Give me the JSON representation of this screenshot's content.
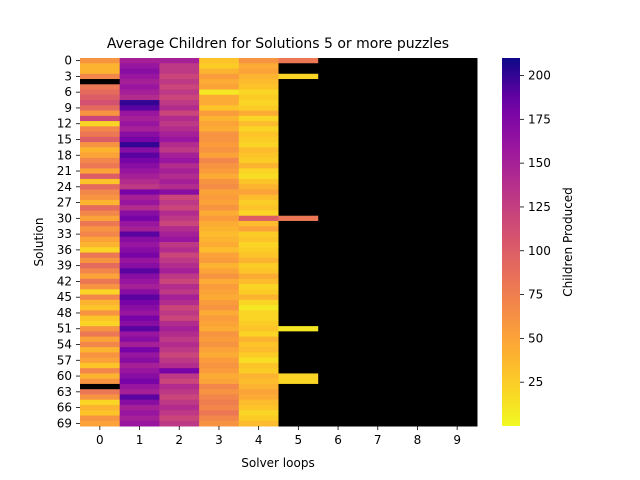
{
  "chart_data": {
    "type": "heatmap",
    "title": "Average Children  for Solutions 5 or more puzzles",
    "xlabel": "Solver loops",
    "ylabel": "Solution",
    "colorbar_label": "Children Produced",
    "colormap": "plasma_r",
    "vmin": 0,
    "vmax": 210,
    "x_categories": [
      "0",
      "1",
      "2",
      "3",
      "4",
      "5",
      "6",
      "7",
      "8",
      "9"
    ],
    "y_tick_labels": [
      "0",
      "3",
      "6",
      "9",
      "12",
      "15",
      "18",
      "21",
      "24",
      "27",
      "30",
      "33",
      "36",
      "39",
      "42",
      "45",
      "48",
      "51",
      "54",
      "57",
      "60",
      "63",
      "66",
      "69"
    ],
    "y_tick_rows": [
      0,
      3,
      6,
      9,
      12,
      15,
      18,
      21,
      24,
      27,
      30,
      33,
      36,
      39,
      42,
      45,
      48,
      51,
      54,
      57,
      60,
      63,
      66,
      69
    ],
    "colorbar_ticks": [
      25,
      50,
      75,
      100,
      125,
      150,
      175,
      200
    ],
    "n_rows": 70,
    "missing_color": "#000000",
    "rows": [
      [
        60,
        150,
        150,
        30,
        60,
        80,
        null,
        null,
        null,
        null
      ],
      [
        40,
        160,
        130,
        25,
        45,
        null,
        null,
        null,
        null,
        null
      ],
      [
        40,
        170,
        130,
        40,
        50,
        null,
        null,
        null,
        null,
        null
      ],
      [
        70,
        160,
        120,
        55,
        40,
        20,
        null,
        null,
        null,
        null
      ],
      [
        null,
        150,
        130,
        45,
        35,
        null,
        null,
        null,
        null,
        null
      ],
      [
        80,
        160,
        120,
        50,
        30,
        null,
        null,
        null,
        null,
        null
      ],
      [
        90,
        150,
        130,
        10,
        20,
        null,
        null,
        null,
        null,
        null
      ],
      [
        100,
        140,
        120,
        45,
        25,
        null,
        null,
        null,
        null,
        null
      ],
      [
        110,
        200,
        130,
        45,
        20,
        null,
        null,
        null,
        null,
        null
      ],
      [
        90,
        190,
        140,
        30,
        25,
        null,
        null,
        null,
        null,
        null
      ],
      [
        60,
        160,
        120,
        55,
        45,
        null,
        null,
        null,
        null,
        null
      ],
      [
        120,
        150,
        140,
        40,
        20,
        null,
        null,
        null,
        null,
        null
      ],
      [
        20,
        160,
        130,
        50,
        35,
        null,
        null,
        null,
        null,
        null
      ],
      [
        70,
        150,
        140,
        45,
        20,
        null,
        null,
        null,
        null,
        null
      ],
      [
        80,
        170,
        150,
        60,
        30,
        null,
        null,
        null,
        null,
        null
      ],
      [
        100,
        180,
        160,
        60,
        25,
        null,
        null,
        null,
        null,
        null
      ],
      [
        60,
        200,
        140,
        55,
        20,
        null,
        null,
        null,
        null,
        null
      ],
      [
        40,
        170,
        130,
        60,
        35,
        null,
        null,
        null,
        null,
        null
      ],
      [
        50,
        190,
        150,
        50,
        30,
        null,
        null,
        null,
        null,
        null
      ],
      [
        70,
        180,
        160,
        70,
        25,
        null,
        null,
        null,
        null,
        null
      ],
      [
        80,
        170,
        140,
        60,
        40,
        null,
        null,
        null,
        null,
        null
      ],
      [
        50,
        160,
        150,
        55,
        20,
        null,
        null,
        null,
        null,
        null
      ],
      [
        100,
        150,
        140,
        45,
        15,
        null,
        null,
        null,
        null,
        null
      ],
      [
        30,
        140,
        150,
        60,
        30,
        null,
        null,
        null,
        null,
        null
      ],
      [
        90,
        130,
        140,
        65,
        40,
        null,
        null,
        null,
        null,
        null
      ],
      [
        70,
        180,
        170,
        50,
        50,
        null,
        null,
        null,
        null,
        null
      ],
      [
        60,
        150,
        120,
        55,
        35,
        null,
        null,
        null,
        null,
        null
      ],
      [
        40,
        160,
        130,
        50,
        25,
        null,
        null,
        null,
        null,
        null
      ],
      [
        90,
        140,
        120,
        60,
        30,
        null,
        null,
        null,
        null,
        null
      ],
      [
        70,
        170,
        140,
        45,
        20,
        null,
        null,
        null,
        null,
        null
      ],
      [
        50,
        180,
        130,
        55,
        100,
        80,
        null,
        null,
        null,
        null
      ],
      [
        80,
        160,
        120,
        45,
        35,
        null,
        null,
        null,
        null,
        null
      ],
      [
        60,
        150,
        140,
        40,
        50,
        null,
        null,
        null,
        null,
        null
      ],
      [
        70,
        190,
        150,
        35,
        25,
        null,
        null,
        null,
        null,
        null
      ],
      [
        50,
        170,
        160,
        40,
        30,
        null,
        null,
        null,
        null,
        null
      ],
      [
        40,
        160,
        130,
        45,
        20,
        null,
        null,
        null,
        null,
        null
      ],
      [
        20,
        170,
        140,
        35,
        25,
        null,
        null,
        null,
        null,
        null
      ],
      [
        80,
        180,
        120,
        50,
        30,
        null,
        null,
        null,
        null,
        null
      ],
      [
        60,
        160,
        130,
        55,
        40,
        null,
        null,
        null,
        null,
        null
      ],
      [
        90,
        170,
        140,
        40,
        25,
        null,
        null,
        null,
        null,
        null
      ],
      [
        70,
        190,
        150,
        50,
        30,
        null,
        null,
        null,
        null,
        null
      ],
      [
        50,
        170,
        130,
        60,
        45,
        null,
        null,
        null,
        null,
        null
      ],
      [
        80,
        160,
        120,
        45,
        35,
        null,
        null,
        null,
        null,
        null
      ],
      [
        60,
        150,
        140,
        55,
        20,
        null,
        null,
        null,
        null,
        null
      ],
      [
        20,
        170,
        130,
        50,
        25,
        null,
        null,
        null,
        null,
        null
      ],
      [
        70,
        190,
        150,
        45,
        40,
        null,
        null,
        null,
        null,
        null
      ],
      [
        40,
        180,
        140,
        55,
        20,
        null,
        null,
        null,
        null,
        null
      ],
      [
        30,
        170,
        120,
        60,
        10,
        null,
        null,
        null,
        null,
        null
      ],
      [
        60,
        160,
        130,
        45,
        20,
        null,
        null,
        null,
        null,
        null
      ],
      [
        30,
        180,
        120,
        55,
        20,
        null,
        null,
        null,
        null,
        null
      ],
      [
        20,
        170,
        140,
        50,
        25,
        null,
        null,
        null,
        null,
        null
      ],
      [
        60,
        190,
        150,
        45,
        30,
        10,
        null,
        null,
        null,
        null
      ],
      [
        80,
        160,
        140,
        60,
        20,
        null,
        null,
        null,
        null,
        null
      ],
      [
        50,
        170,
        130,
        55,
        40,
        null,
        null,
        null,
        null,
        null
      ],
      [
        70,
        150,
        140,
        60,
        30,
        null,
        null,
        null,
        null,
        null
      ],
      [
        40,
        180,
        130,
        50,
        35,
        null,
        null,
        null,
        null,
        null
      ],
      [
        60,
        160,
        120,
        45,
        25,
        null,
        null,
        null,
        null,
        null
      ],
      [
        50,
        170,
        130,
        55,
        15,
        null,
        null,
        null,
        null,
        null
      ],
      [
        30,
        150,
        140,
        60,
        30,
        null,
        null,
        null,
        null,
        null
      ],
      [
        70,
        160,
        180,
        55,
        25,
        null,
        null,
        null,
        null,
        null
      ],
      [
        40,
        170,
        130,
        45,
        40,
        20,
        null,
        null,
        null,
        null
      ],
      [
        60,
        180,
        120,
        50,
        35,
        20,
        null,
        null,
        null,
        null
      ],
      [
        null,
        160,
        140,
        70,
        40,
        null,
        null,
        null,
        null,
        null
      ],
      [
        80,
        150,
        130,
        60,
        50,
        null,
        null,
        null,
        null,
        null
      ],
      [
        60,
        190,
        120,
        70,
        45,
        null,
        null,
        null,
        null,
        null
      ],
      [
        20,
        170,
        130,
        75,
        35,
        null,
        null,
        null,
        null,
        null
      ],
      [
        40,
        150,
        140,
        70,
        30,
        null,
        null,
        null,
        null,
        null
      ],
      [
        30,
        160,
        130,
        80,
        20,
        null,
        null,
        null,
        null,
        null
      ],
      [
        60,
        150,
        120,
        70,
        25,
        null,
        null,
        null,
        null,
        null
      ],
      [
        50,
        160,
        130,
        60,
        35,
        null,
        null,
        null,
        null,
        null
      ]
    ]
  }
}
